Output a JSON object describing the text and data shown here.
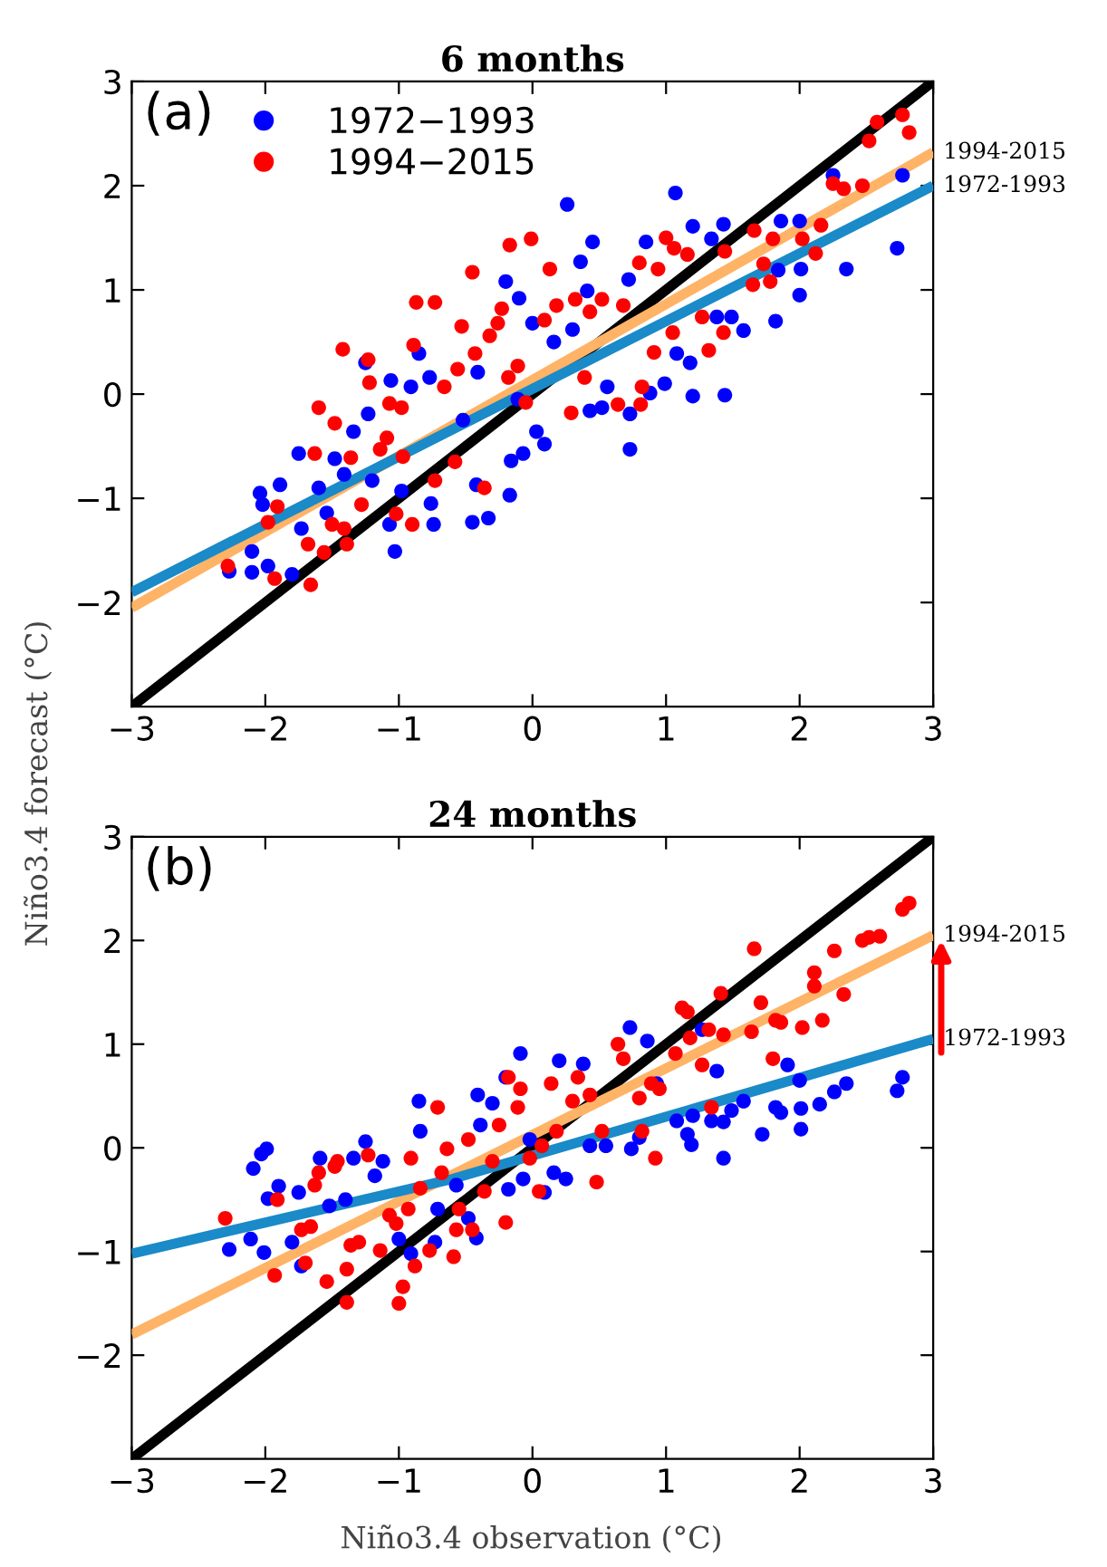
{
  "chart_data": [
    {
      "type": "scatter",
      "title": "6 months",
      "ylabel": "Niño3.4 forecast (°C)",
      "annotations": [
        "(a)"
      ],
      "xlim": [
        -3,
        3
      ],
      "ylim": [
        -3,
        3
      ],
      "xticks": [
        -3,
        -2,
        -1,
        0,
        1,
        2,
        3
      ],
      "yticks": [
        -2,
        -1,
        0,
        1,
        2,
        3
      ],
      "legend": "top left",
      "grid": false,
      "series": [
        {
          "name": "1972−1993",
          "marker": "circle",
          "color": "#0000ff",
          "x": [
            -2.27,
            -2.1,
            -2.1,
            -1.98,
            -2.04,
            -2.02,
            -1.89,
            -1.8,
            -1.75,
            -1.73,
            -1.6,
            -1.54,
            -1.48,
            -1.41,
            -1.34,
            -1.25,
            -1.23,
            -1.2,
            -1.06,
            -1.07,
            -1.03,
            -0.98,
            -0.91,
            -0.85,
            -0.77,
            -0.76,
            -0.74,
            -0.52,
            -0.45,
            -0.42,
            -0.41,
            -0.33,
            -0.2,
            -0.17,
            -0.16,
            -0.11,
            -0.1,
            -0.07,
            0,
            0.03,
            0.09,
            0.16,
            0.26,
            0.3,
            0.36,
            0.41,
            0.43,
            0.45,
            0.52,
            0.56,
            0.72,
            0.73,
            0.73,
            0.85,
            0.88,
            0.99,
            1.07,
            1.08,
            1.18,
            1.2,
            1.2,
            1.34,
            1.43,
            1.44,
            1.38,
            1.49,
            1.58,
            1.82,
            1.84,
            1.86,
            2.0,
            2.01,
            2.0,
            2.25,
            2.35,
            2.73,
            2.77
          ],
          "values": [
            -1.7,
            -1.71,
            -1.51,
            -1.65,
            -0.95,
            -1.06,
            -0.87,
            -1.73,
            -0.57,
            -1.29,
            -0.9,
            -1.14,
            -0.62,
            -0.77,
            -0.36,
            0.3,
            -0.19,
            -0.83,
            0.13,
            -1.25,
            -1.51,
            -0.93,
            0.07,
            0.39,
            0.16,
            -1.05,
            -1.25,
            -0.25,
            -1.23,
            -0.87,
            0.21,
            -1.19,
            1.08,
            -0.97,
            -0.64,
            -0.05,
            0.92,
            -0.57,
            0.68,
            -0.36,
            -0.48,
            0.5,
            1.82,
            0.62,
            1.27,
            0.99,
            -0.16,
            1.46,
            -0.13,
            0.07,
            1.1,
            -0.19,
            -0.53,
            1.46,
            0.01,
            0.1,
            1.93,
            0.39,
            0.3,
            1.61,
            -0.02,
            1.49,
            1.63,
            -0.01,
            0.74,
            0.74,
            0.61,
            0.7,
            1.19,
            1.66,
            0.95,
            1.2,
            1.66,
            2.1,
            1.2,
            1.4,
            2.1
          ]
        },
        {
          "name": "1994−2015",
          "marker": "circle",
          "color": "#ff0000",
          "x": [
            -2.28,
            -1.93,
            -1.91,
            -1.98,
            -1.66,
            -1.68,
            -1.56,
            -1.5,
            -1.41,
            -1.39,
            -1.6,
            -1.48,
            -1.42,
            -1.63,
            -1.36,
            -1.28,
            -1.23,
            -1.22,
            -1.14,
            -1.09,
            -1.07,
            -1.02,
            -0.98,
            -0.97,
            -0.9,
            -0.89,
            -0.87,
            -0.73,
            -0.73,
            -0.66,
            -0.58,
            -0.56,
            -0.53,
            -0.45,
            -0.43,
            -0.36,
            -0.32,
            -0.26,
            -0.23,
            -0.17,
            -0.18,
            -0.11,
            -0.05,
            -0.01,
            0.09,
            0.13,
            0.18,
            0.29,
            0.32,
            0.39,
            0.43,
            0.52,
            0.64,
            0.68,
            0.8,
            0.81,
            0.82,
            0.91,
            0.94,
            1.0,
            1.05,
            1.06,
            1.16,
            1.27,
            1.32,
            1.43,
            1.44,
            1.65,
            1.66,
            1.73,
            1.78,
            1.8,
            2.02,
            2.12,
            2.16,
            2.25,
            2.33,
            2.47,
            2.52,
            2.58,
            2.77,
            2.82
          ],
          "values": [
            -1.65,
            -1.77,
            -1.08,
            -1.23,
            -1.83,
            -1.44,
            -1.52,
            -1.25,
            -1.29,
            -1.44,
            -0.13,
            -0.28,
            0.43,
            -0.57,
            -0.61,
            -1.06,
            0.33,
            0.11,
            -0.53,
            -0.42,
            -0.09,
            -1.15,
            -0.13,
            -0.6,
            -1.25,
            0.47,
            0.88,
            0.88,
            -0.83,
            0.07,
            -0.65,
            0.24,
            0.65,
            1.17,
            0.39,
            -0.9,
            0.56,
            0.68,
            0.82,
            1.43,
            0.16,
            0.27,
            -0.08,
            1.49,
            0.71,
            1.2,
            0.85,
            -0.18,
            0.91,
            0.16,
            0.79,
            0.91,
            -0.1,
            0.85,
            1.26,
            -0.1,
            0.07,
            0.4,
            1.2,
            1.5,
            0.59,
            1.4,
            1.34,
            0.74,
            0.42,
            0.59,
            1.37,
            1.05,
            1.57,
            1.25,
            1.08,
            1.49,
            1.49,
            1.35,
            1.62,
            2.02,
            1.97,
            2.0,
            2.43,
            2.61,
            2.68,
            2.51
          ]
        },
        {
          "type": "line",
          "color": "#000000",
          "x": [
            -3,
            3
          ],
          "values": [
            -3,
            3
          ]
        },
        {
          "name": "1994-2015",
          "type": "line",
          "color": "#ffb366",
          "x": [
            -3,
            3
          ],
          "values": [
            -2.05,
            2.32
          ]
        },
        {
          "name": "1972-1993",
          "type": "line",
          "color": "#1a8ac8",
          "x": [
            -3,
            3
          ],
          "values": [
            -1.9,
            2.0
          ]
        }
      ]
    },
    {
      "type": "scatter",
      "title": "24 months",
      "xlabel": "Niño3.4 observation (°C)",
      "annotations": [
        "(b)"
      ],
      "xlim": [
        -3,
        3
      ],
      "ylim": [
        -3,
        3
      ],
      "xticks": [
        -3,
        -2,
        -1,
        0,
        1,
        2,
        3
      ],
      "yticks": [
        -2,
        -1,
        0,
        1,
        2,
        3
      ],
      "legend": false,
      "grid": false,
      "series": [
        {
          "marker": "circle",
          "color": "#0000ff",
          "x": [
            -2.27,
            -2.09,
            -2.03,
            -1.99,
            -2.11,
            -2.01,
            -1.98,
            -1.9,
            -1.8,
            -1.75,
            -1.73,
            -1.59,
            -1.52,
            -1.4,
            -1.34,
            -1.25,
            -1.18,
            -1.12,
            -1.0,
            -0.91,
            -0.85,
            -0.84,
            -0.73,
            -0.71,
            -0.57,
            -0.48,
            -0.42,
            -0.41,
            -0.39,
            -0.3,
            -0.2,
            -0.18,
            -0.09,
            -0.07,
            -0.02,
            0.09,
            0.16,
            0.2,
            0.25,
            0.38,
            0.43,
            0.55,
            0.73,
            0.74,
            0.8,
            0.86,
            0.93,
            1.08,
            1.16,
            1.19,
            1.2,
            1.27,
            1.34,
            1.38,
            1.43,
            1.43,
            1.49,
            1.58,
            1.72,
            1.82,
            1.86,
            1.91,
            2.0,
            2.01,
            2.01,
            2.15,
            2.26,
            2.35,
            2.73,
            2.77
          ],
          "values": [
            -0.98,
            -0.2,
            -0.06,
            -0.01,
            -0.88,
            -1.01,
            -0.49,
            -0.37,
            -0.91,
            -0.43,
            -1.14,
            -0.1,
            -0.56,
            -0.5,
            -0.1,
            0.06,
            -0.27,
            -0.13,
            -0.88,
            -1.02,
            0.45,
            0.16,
            -0.91,
            -0.59,
            -0.36,
            -0.68,
            -0.87,
            0.51,
            0.22,
            0.43,
            0.68,
            -0.4,
            0.91,
            -0.3,
            0.08,
            -0.43,
            -0.24,
            0.84,
            -0.3,
            0.81,
            0.02,
            0.02,
            1.16,
            -0.01,
            0.1,
            1.03,
            0.62,
            0.26,
            0.13,
            0.03,
            0.31,
            1.14,
            0.26,
            0.74,
            0.25,
            -0.1,
            0.36,
            0.45,
            0.13,
            0.39,
            0.34,
            0.8,
            0.65,
            0.18,
            0.38,
            0.42,
            0.54,
            0.62,
            0.55,
            0.68
          ]
        },
        {
          "marker": "circle",
          "color": "#ff0000",
          "x": [
            -2.3,
            -1.93,
            -1.91,
            -1.7,
            -1.73,
            -1.66,
            -1.54,
            -1.63,
            -1.6,
            -1.48,
            -1.46,
            -1.39,
            -1.39,
            -1.36,
            -1.3,
            -1.23,
            -1.14,
            -1.07,
            -1.02,
            -1.0,
            -0.97,
            -0.93,
            -0.91,
            -0.88,
            -0.84,
            -0.77,
            -0.71,
            -0.68,
            -0.64,
            -0.59,
            -0.57,
            -0.55,
            -0.48,
            -0.45,
            -0.36,
            -0.3,
            -0.25,
            -0.2,
            -0.18,
            -0.11,
            -0.09,
            -0.02,
            0.05,
            0.07,
            0.14,
            0.18,
            0.3,
            0.34,
            0.43,
            0.48,
            0.52,
            0.64,
            0.68,
            0.82,
            0.8,
            0.89,
            0.92,
            0.95,
            1.07,
            1.12,
            1.16,
            1.18,
            1.27,
            1.32,
            1.34,
            1.41,
            1.43,
            1.64,
            1.66,
            1.71,
            1.8,
            1.82,
            1.86,
            2.02,
            2.11,
            2.11,
            2.17,
            2.26,
            2.33,
            2.47,
            2.52,
            2.6,
            2.77,
            2.82
          ],
          "values": [
            -0.68,
            -1.23,
            -0.5,
            -1.11,
            -0.79,
            -0.76,
            -1.29,
            -0.36,
            -0.24,
            -0.18,
            -0.13,
            -1.17,
            -1.49,
            -0.94,
            -0.91,
            -0.07,
            -0.99,
            -0.65,
            -0.73,
            -1.5,
            -1.34,
            -0.59,
            -0.1,
            -1.14,
            -0.39,
            -0.99,
            0.39,
            -0.24,
            -0.01,
            -1.05,
            -0.79,
            -0.59,
            0.08,
            -0.79,
            -0.42,
            -0.13,
            0.22,
            -0.72,
            0.68,
            0.39,
            0.57,
            -0.1,
            -0.42,
            0.02,
            0.62,
            0.16,
            0.45,
            0.68,
            0.51,
            -0.33,
            0.16,
            1.0,
            0.86,
            0.16,
            0.48,
            0.62,
            -0.1,
            0.57,
            0.91,
            1.35,
            1.31,
            1.06,
            0.8,
            1.14,
            0.39,
            1.49,
            1.09,
            1.12,
            1.92,
            1.4,
            0.86,
            1.23,
            1.21,
            1.16,
            1.69,
            1.56,
            1.23,
            1.9,
            1.48,
            2.0,
            2.03,
            2.04,
            2.3,
            2.36
          ]
        },
        {
          "type": "line",
          "color": "#000000",
          "x": [
            -3,
            3
          ],
          "values": [
            -3,
            3
          ]
        },
        {
          "name": "1994-2015",
          "type": "line",
          "color": "#ffb366",
          "x": [
            -3,
            3
          ],
          "values": [
            -1.8,
            2.05
          ]
        },
        {
          "name": "1972-1993",
          "type": "line",
          "color": "#1a8ac8",
          "x": [
            -3,
            -0.6,
            3
          ],
          "values": [
            -1.02,
            -0.3,
            1.05
          ]
        }
      ]
    }
  ]
}
